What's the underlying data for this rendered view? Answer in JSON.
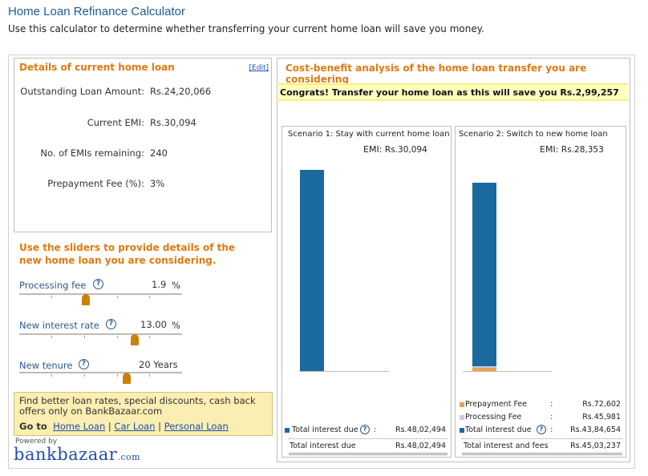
{
  "header": {
    "title": "Home Loan Refinance Calculator",
    "subtitle": "Use this calculator to determine whether transferring your current home loan will save you money."
  },
  "current_loan": {
    "heading": "Details of current home loan",
    "edit_label": "[Edit]",
    "rows": [
      {
        "label": "Outstanding Loan Amount:",
        "value": "Rs.24,20,066"
      },
      {
        "label": "Current EMI:",
        "value": "Rs.30,094"
      },
      {
        "label": "No. of EMIs remaining:",
        "value": "240"
      },
      {
        "label": "Prepayment Fee (%):",
        "value": "3%"
      }
    ]
  },
  "sliders": {
    "heading": "Use the sliders to provide details of the new home loan you are considering.",
    "items": [
      {
        "label": "Processing fee",
        "value": "1.9",
        "unit": "%",
        "position": 0.41
      },
      {
        "label": "New interest rate",
        "value": "13.00",
        "unit": "%",
        "position": 0.71
      },
      {
        "label": "New tenure",
        "value": "20 Years",
        "unit": "",
        "position": 0.66
      }
    ]
  },
  "promo": {
    "text": "Find better loan rates, special discounts, cash back offers only on BankBazaar.com",
    "goto_label": "Go to",
    "links": [
      "Home Loan",
      "Car Loan",
      "Personal Loan"
    ]
  },
  "brand": {
    "powered_by": "Powered by",
    "logo_text": "bankbazaar",
    "logo_suffix": ".com",
    "logo_color": "#1d4fa8",
    "accent_color": "#e07a10"
  },
  "analysis": {
    "heading": "Cost-benefit analysis of the home loan transfer you are considering",
    "congrats": "Congrats! Transfer your home loan as this will save you Rs.2,99,257"
  },
  "scenario1": {
    "title": "Scenario 1: Stay with current home loan",
    "emi_label": "EMI:",
    "emi_value": "Rs.30,094",
    "bar_total": 4802494,
    "legend": [
      {
        "label": "Total interest due",
        "value": "Rs.48,02,494",
        "color": "#1a6aa0"
      }
    ],
    "total_label": "Total interest due",
    "total_value": "Rs.48,02,494"
  },
  "scenario2": {
    "title": "Scenario 2: Switch to new home loan",
    "emi_label": "EMI:",
    "emi_value": "Rs.28,353",
    "segments": [
      {
        "label": "Prepayment Fee",
        "value": "Rs.72,602",
        "amount": 72602,
        "color": "#f0a050"
      },
      {
        "label": "Processing Fee",
        "value": "Rs.45,981",
        "amount": 45981,
        "color": "#c8c8e8"
      },
      {
        "label": "Total interest due",
        "value": "Rs.43,84,654",
        "amount": 4384654,
        "color": "#1a6aa0"
      }
    ],
    "total_label": "Total interest and fees",
    "total_value": "Rs.45,03,237"
  }
}
